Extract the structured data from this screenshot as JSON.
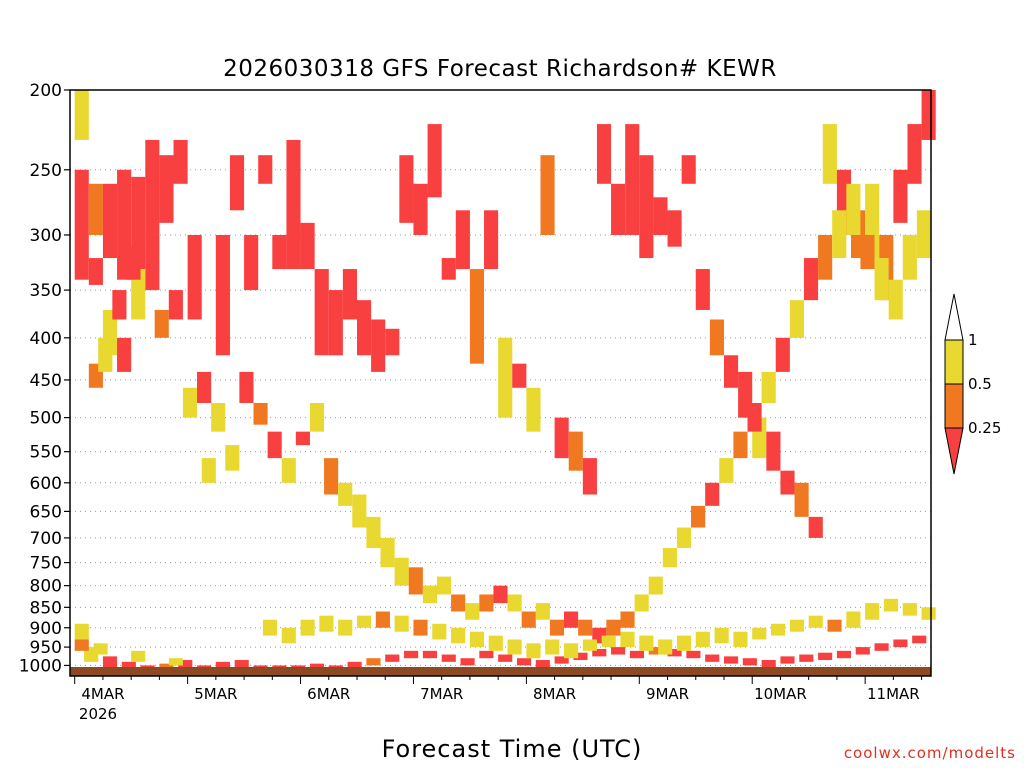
{
  "chart_data": {
    "type": "heatmap",
    "title": "2026030318 GFS Forecast Richardson# KEWR",
    "xlabel": "Forecast Time (UTC)",
    "ylabel": "",
    "y_axis": {
      "scale": "log",
      "inverted": true,
      "range": [
        1030,
        200
      ],
      "ticks": [
        200,
        250,
        300,
        350,
        400,
        450,
        500,
        550,
        600,
        650,
        700,
        750,
        800,
        850,
        900,
        950,
        1000
      ],
      "gridlines": "dotted"
    },
    "x_axis": {
      "range_hours": [
        -1,
        182
      ],
      "tick_labels": [
        "4MAR",
        "5MAR",
        "6MAR",
        "7MAR",
        "8MAR",
        "9MAR",
        "10MAR",
        "11MAR"
      ],
      "tick_sublabel": "2026"
    },
    "legend": {
      "position": "right",
      "levels": [
        "1",
        "0.5",
        "0.25"
      ],
      "colors": [
        "#ffffff",
        "#e8d830",
        "#f07820",
        "#f84040"
      ]
    },
    "colors": {
      "ground": "#8b4a22",
      "yellow": "#e8d830",
      "orange": "#f07820",
      "red": "#f84040"
    },
    "cells": [
      [
        0,
        200,
        230,
        "yellow"
      ],
      [
        0,
        250,
        340,
        "red"
      ],
      [
        3,
        260,
        300,
        "orange"
      ],
      [
        3,
        320,
        345,
        "red"
      ],
      [
        6,
        260,
        320,
        "red"
      ],
      [
        9,
        250,
        340,
        "red"
      ],
      [
        12,
        255,
        330,
        "red"
      ],
      [
        15,
        230,
        300,
        "red"
      ],
      [
        18,
        240,
        290,
        "red"
      ],
      [
        21,
        230,
        260,
        "red"
      ],
      [
        24,
        300,
        380,
        "red"
      ],
      [
        15,
        300,
        350,
        "red"
      ],
      [
        12,
        330,
        380,
        "yellow"
      ],
      [
        6,
        370,
        420,
        "yellow"
      ],
      [
        3,
        430,
        460,
        "orange"
      ],
      [
        9,
        400,
        440,
        "red"
      ],
      [
        30,
        300,
        420,
        "red"
      ],
      [
        33,
        240,
        280,
        "red"
      ],
      [
        36,
        300,
        350,
        "red"
      ],
      [
        39,
        240,
        260,
        "red"
      ],
      [
        42,
        300,
        330,
        "red"
      ],
      [
        45,
        230,
        330,
        "red"
      ],
      [
        48,
        290,
        330,
        "red"
      ],
      [
        51,
        330,
        420,
        "red"
      ],
      [
        54,
        350,
        420,
        "red"
      ],
      [
        57,
        330,
        380,
        "red"
      ],
      [
        60,
        360,
        420,
        "red"
      ],
      [
        63,
        380,
        440,
        "red"
      ],
      [
        66,
        390,
        420,
        "red"
      ],
      [
        69,
        240,
        290,
        "red"
      ],
      [
        72,
        260,
        300,
        "red"
      ],
      [
        75,
        220,
        270,
        "red"
      ],
      [
        78,
        320,
        340,
        "red"
      ],
      [
        81,
        280,
        330,
        "red"
      ],
      [
        84,
        330,
        430,
        "orange"
      ],
      [
        87,
        280,
        330,
        "red"
      ],
      [
        90,
        400,
        500,
        "yellow"
      ],
      [
        93,
        430,
        460,
        "red"
      ],
      [
        96,
        460,
        520,
        "yellow"
      ],
      [
        99,
        240,
        300,
        "orange"
      ],
      [
        102,
        500,
        560,
        "red"
      ],
      [
        105,
        520,
        580,
        "orange"
      ],
      [
        108,
        560,
        620,
        "red"
      ],
      [
        111,
        220,
        260,
        "red"
      ],
      [
        114,
        260,
        300,
        "red"
      ],
      [
        117,
        220,
        300,
        "red"
      ],
      [
        120,
        240,
        320,
        "red"
      ],
      [
        123,
        270,
        300,
        "red"
      ],
      [
        126,
        280,
        310,
        "red"
      ],
      [
        129,
        240,
        260,
        "red"
      ],
      [
        132,
        330,
        370,
        "red"
      ],
      [
        135,
        380,
        420,
        "orange"
      ],
      [
        138,
        420,
        460,
        "red"
      ],
      [
        141,
        440,
        500,
        "red"
      ],
      [
        144,
        500,
        560,
        "yellow"
      ],
      [
        147,
        520,
        580,
        "red"
      ],
      [
        150,
        580,
        620,
        "red"
      ],
      [
        153,
        600,
        660,
        "orange"
      ],
      [
        156,
        660,
        700,
        "red"
      ],
      [
        159,
        220,
        260,
        "yellow"
      ],
      [
        162,
        250,
        300,
        "red"
      ],
      [
        165,
        280,
        320,
        "orange"
      ],
      [
        168,
        260,
        320,
        "yellow"
      ],
      [
        171,
        300,
        360,
        "orange"
      ],
      [
        174,
        250,
        290,
        "red"
      ],
      [
        177,
        220,
        260,
        "red"
      ],
      [
        180,
        200,
        230,
        "red"
      ],
      [
        5,
        400,
        440,
        "yellow"
      ],
      [
        8,
        350,
        380,
        "red"
      ],
      [
        11,
        310,
        340,
        "red"
      ],
      [
        17,
        370,
        400,
        "orange"
      ],
      [
        20,
        350,
        380,
        "red"
      ],
      [
        23,
        460,
        500,
        "yellow"
      ],
      [
        26,
        440,
        480,
        "red"
      ],
      [
        27,
        560,
        600,
        "yellow"
      ],
      [
        29,
        480,
        520,
        "yellow"
      ],
      [
        32,
        540,
        580,
        "yellow"
      ],
      [
        35,
        440,
        480,
        "red"
      ],
      [
        38,
        480,
        510,
        "orange"
      ],
      [
        41,
        520,
        560,
        "red"
      ],
      [
        44,
        560,
        600,
        "yellow"
      ],
      [
        47,
        520,
        540,
        "red"
      ],
      [
        50,
        480,
        520,
        "yellow"
      ],
      [
        53,
        560,
        620,
        "orange"
      ],
      [
        56,
        600,
        640,
        "yellow"
      ],
      [
        59,
        620,
        680,
        "yellow"
      ],
      [
        62,
        660,
        720,
        "yellow"
      ],
      [
        65,
        700,
        760,
        "yellow"
      ],
      [
        68,
        740,
        800,
        "yellow"
      ],
      [
        71,
        760,
        820,
        "orange"
      ],
      [
        74,
        800,
        840,
        "yellow"
      ],
      [
        77,
        780,
        820,
        "yellow"
      ],
      [
        80,
        820,
        860,
        "orange"
      ],
      [
        83,
        840,
        880,
        "yellow"
      ],
      [
        86,
        820,
        860,
        "orange"
      ],
      [
        89,
        800,
        840,
        "red"
      ],
      [
        92,
        820,
        860,
        "yellow"
      ],
      [
        95,
        860,
        900,
        "orange"
      ],
      [
        98,
        840,
        880,
        "yellow"
      ],
      [
        101,
        880,
        920,
        "orange"
      ],
      [
        104,
        860,
        900,
        "red"
      ],
      [
        107,
        880,
        920,
        "orange"
      ],
      [
        110,
        900,
        940,
        "red"
      ],
      [
        113,
        880,
        920,
        "orange"
      ],
      [
        116,
        860,
        900,
        "orange"
      ],
      [
        119,
        820,
        860,
        "yellow"
      ],
      [
        122,
        780,
        820,
        "yellow"
      ],
      [
        125,
        720,
        760,
        "yellow"
      ],
      [
        128,
        680,
        720,
        "yellow"
      ],
      [
        131,
        640,
        680,
        "orange"
      ],
      [
        134,
        600,
        640,
        "red"
      ],
      [
        137,
        560,
        600,
        "yellow"
      ],
      [
        140,
        520,
        560,
        "orange"
      ],
      [
        143,
        480,
        520,
        "red"
      ],
      [
        146,
        440,
        480,
        "yellow"
      ],
      [
        149,
        400,
        440,
        "red"
      ],
      [
        152,
        360,
        400,
        "yellow"
      ],
      [
        155,
        320,
        360,
        "red"
      ],
      [
        158,
        300,
        340,
        "orange"
      ],
      [
        161,
        280,
        320,
        "yellow"
      ],
      [
        164,
        260,
        300,
        "yellow"
      ],
      [
        167,
        300,
        330,
        "orange"
      ],
      [
        170,
        320,
        360,
        "yellow"
      ],
      [
        173,
        340,
        380,
        "yellow"
      ],
      [
        176,
        300,
        340,
        "yellow"
      ],
      [
        179,
        280,
        320,
        "yellow"
      ],
      [
        0,
        890,
        930,
        "yellow"
      ],
      [
        2,
        950,
        990,
        "yellow"
      ],
      [
        6,
        975,
        1010,
        "red"
      ],
      [
        10,
        990,
        1010,
        "red"
      ],
      [
        14,
        1000,
        1020,
        "red"
      ],
      [
        18,
        995,
        1015,
        "orange"
      ],
      [
        22,
        985,
        1005,
        "red"
      ],
      [
        26,
        1000,
        1020,
        "red"
      ],
      [
        30,
        990,
        1010,
        "red"
      ],
      [
        34,
        985,
        1005,
        "red"
      ],
      [
        38,
        1000,
        1020,
        "red"
      ],
      [
        42,
        1000,
        1020,
        "red"
      ],
      [
        46,
        1000,
        1020,
        "red"
      ],
      [
        50,
        995,
        1015,
        "red"
      ],
      [
        54,
        1000,
        1020,
        "red"
      ],
      [
        58,
        990,
        1010,
        "red"
      ],
      [
        62,
        980,
        1000,
        "orange"
      ],
      [
        66,
        970,
        990,
        "red"
      ],
      [
        70,
        960,
        980,
        "red"
      ],
      [
        74,
        960,
        980,
        "red"
      ],
      [
        78,
        970,
        990,
        "red"
      ],
      [
        82,
        980,
        1000,
        "red"
      ],
      [
        86,
        960,
        980,
        "red"
      ],
      [
        90,
        970,
        990,
        "red"
      ],
      [
        94,
        980,
        1000,
        "red"
      ],
      [
        98,
        985,
        1005,
        "red"
      ],
      [
        102,
        975,
        995,
        "red"
      ],
      [
        106,
        965,
        985,
        "red"
      ],
      [
        110,
        955,
        975,
        "red"
      ],
      [
        114,
        950,
        970,
        "red"
      ],
      [
        118,
        960,
        980,
        "red"
      ],
      [
        122,
        950,
        970,
        "orange"
      ],
      [
        126,
        955,
        975,
        "red"
      ],
      [
        130,
        960,
        980,
        "red"
      ],
      [
        134,
        970,
        990,
        "red"
      ],
      [
        138,
        975,
        995,
        "red"
      ],
      [
        142,
        980,
        1000,
        "red"
      ],
      [
        146,
        985,
        1005,
        "red"
      ],
      [
        150,
        975,
        995,
        "red"
      ],
      [
        154,
        970,
        990,
        "red"
      ],
      [
        158,
        965,
        985,
        "red"
      ],
      [
        162,
        960,
        980,
        "red"
      ],
      [
        166,
        950,
        970,
        "red"
      ],
      [
        170,
        940,
        960,
        "red"
      ],
      [
        174,
        930,
        950,
        "red"
      ],
      [
        178,
        920,
        940,
        "red"
      ],
      [
        0,
        930,
        960,
        "orange"
      ],
      [
        4,
        940,
        970,
        "yellow"
      ],
      [
        12,
        960,
        990,
        "yellow"
      ],
      [
        20,
        980,
        1000,
        "yellow"
      ],
      [
        40,
        880,
        920,
        "yellow"
      ],
      [
        44,
        900,
        940,
        "yellow"
      ],
      [
        48,
        880,
        920,
        "yellow"
      ],
      [
        52,
        870,
        910,
        "yellow"
      ],
      [
        56,
        880,
        920,
        "yellow"
      ],
      [
        60,
        870,
        900,
        "yellow"
      ],
      [
        64,
        860,
        900,
        "orange"
      ],
      [
        68,
        870,
        910,
        "yellow"
      ],
      [
        72,
        880,
        920,
        "orange"
      ],
      [
        76,
        890,
        930,
        "yellow"
      ],
      [
        80,
        900,
        940,
        "yellow"
      ],
      [
        84,
        910,
        950,
        "yellow"
      ],
      [
        88,
        920,
        960,
        "yellow"
      ],
      [
        92,
        930,
        970,
        "yellow"
      ],
      [
        96,
        940,
        980,
        "yellow"
      ],
      [
        100,
        930,
        970,
        "yellow"
      ],
      [
        104,
        940,
        980,
        "yellow"
      ],
      [
        108,
        930,
        960,
        "yellow"
      ],
      [
        112,
        920,
        950,
        "yellow"
      ],
      [
        116,
        910,
        950,
        "yellow"
      ],
      [
        120,
        920,
        960,
        "yellow"
      ],
      [
        124,
        930,
        970,
        "yellow"
      ],
      [
        128,
        920,
        960,
        "yellow"
      ],
      [
        132,
        910,
        950,
        "yellow"
      ],
      [
        136,
        900,
        940,
        "yellow"
      ],
      [
        140,
        910,
        950,
        "yellow"
      ],
      [
        144,
        900,
        930,
        "yellow"
      ],
      [
        148,
        890,
        920,
        "yellow"
      ],
      [
        152,
        880,
        910,
        "yellow"
      ],
      [
        156,
        870,
        900,
        "yellow"
      ],
      [
        160,
        880,
        910,
        "orange"
      ],
      [
        164,
        860,
        900,
        "yellow"
      ],
      [
        168,
        840,
        880,
        "yellow"
      ],
      [
        172,
        830,
        860,
        "yellow"
      ],
      [
        176,
        840,
        870,
        "yellow"
      ],
      [
        180,
        850,
        880,
        "yellow"
      ]
    ]
  },
  "credit": "coolwx.com/modelts"
}
